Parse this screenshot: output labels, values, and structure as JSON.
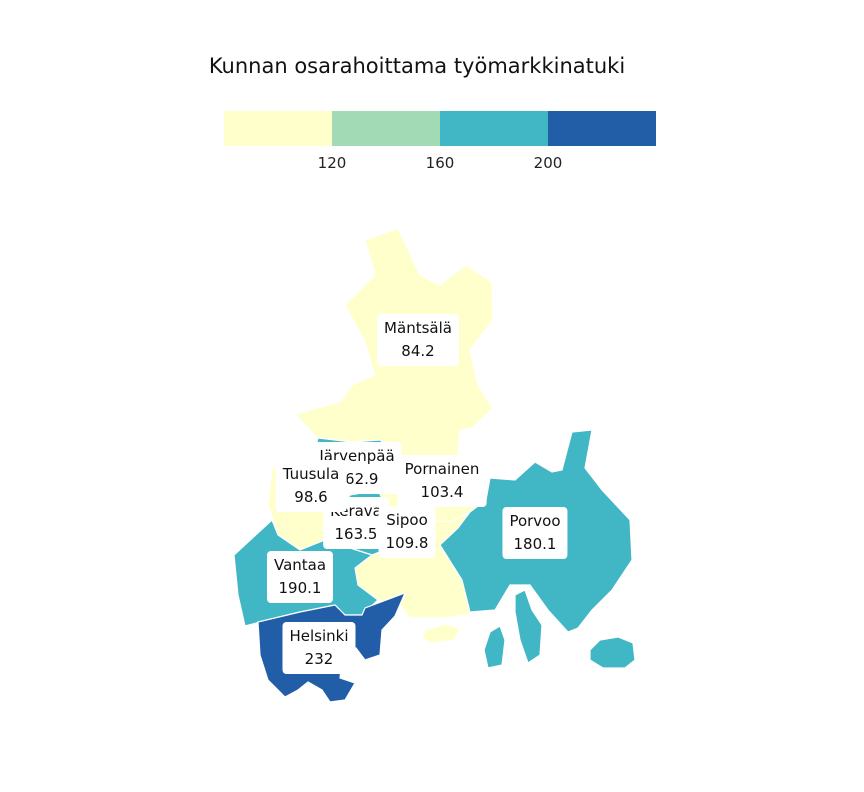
{
  "title": "Kunnan osarahoittama työmarkkinatuki",
  "legend": {
    "colors": [
      "#ffffcc",
      "#a1dab4",
      "#41b6c4",
      "#225ea8"
    ],
    "ticks": [
      "120",
      "160",
      "200"
    ]
  },
  "regions": [
    {
      "name": "Mäntsälä",
      "value": "84.2",
      "color": "#ffffcc"
    },
    {
      "name": "Järvenpää",
      "value": "162.9",
      "color": "#41b6c4"
    },
    {
      "name": "Tuusula",
      "value": "98.6",
      "color": "#ffffcc"
    },
    {
      "name": "Pornainen",
      "value": "103.4",
      "color": "#ffffcc"
    },
    {
      "name": "Kerava",
      "value": "163.5",
      "color": "#41b6c4"
    },
    {
      "name": "Sipoo",
      "value": "109.8",
      "color": "#ffffcc"
    },
    {
      "name": "Porvoo",
      "value": "180.1",
      "color": "#41b6c4"
    },
    {
      "name": "Vantaa",
      "value": "190.1",
      "color": "#41b6c4"
    },
    {
      "name": "Helsinki",
      "value": "232",
      "color": "#225ea8"
    }
  ]
}
